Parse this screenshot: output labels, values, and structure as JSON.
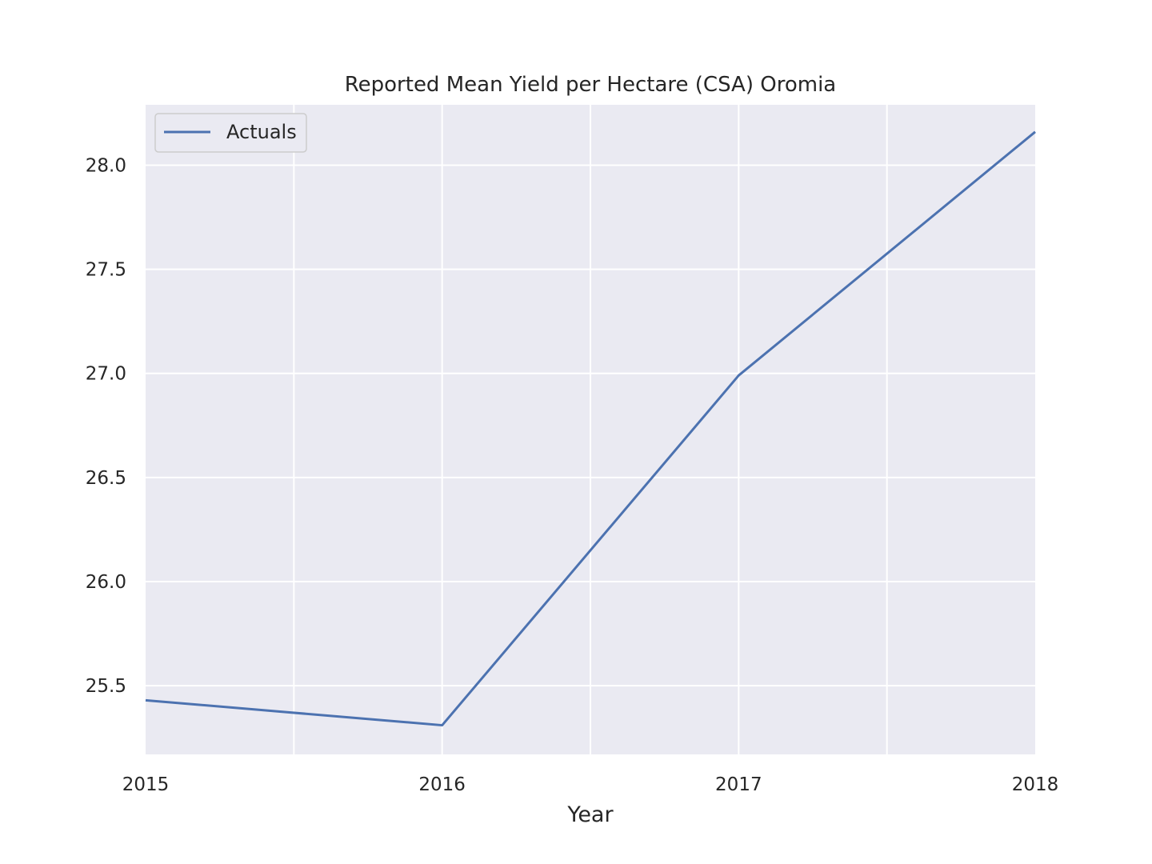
{
  "chart_data": {
    "type": "line",
    "title": "Reported Mean Yield per Hectare (CSA) Oromia",
    "xlabel": "Year",
    "ylabel": "",
    "x": [
      2015,
      2016,
      2017,
      2018
    ],
    "x_tick_labels": [
      "2015",
      "2016",
      "2017",
      "2018"
    ],
    "xlim": [
      2015,
      2018
    ],
    "ylim": [
      25.17,
      28.29
    ],
    "y_ticks": [
      25.5,
      26.0,
      26.5,
      27.0,
      27.5,
      28.0
    ],
    "y_tick_labels": [
      "25.5",
      "26.0",
      "26.5",
      "27.0",
      "27.5",
      "28.0"
    ],
    "grid": true,
    "legend_position": "top-left",
    "series": [
      {
        "name": "Actuals",
        "values": [
          25.43,
          25.31,
          26.99,
          28.16
        ],
        "color": "#4c72b0"
      }
    ]
  }
}
